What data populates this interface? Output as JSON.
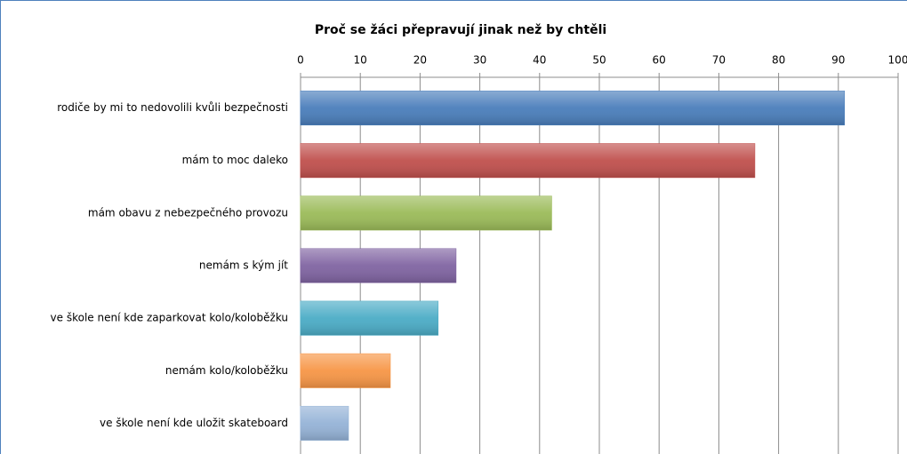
{
  "chart_data": {
    "type": "bar",
    "orientation": "horizontal",
    "title": "Proč se žáci přepravují jinak než by chtěli",
    "categories": [
      "rodiče by mi to nedovolili kvůli bezpečnosti",
      "mám to moc daleko",
      "mám obavu z nebezpečného provozu",
      "nemám s kým jít",
      "ve škole není kde zaparkovat kolo/koloběžku",
      "nemám kolo/koloběžku",
      "ve škole není kde uložit skateboard"
    ],
    "values": [
      91,
      76,
      42,
      26,
      23,
      15,
      8
    ],
    "colors": [
      "#4a7ebb",
      "#c0504d",
      "#9bbb59",
      "#8064a2",
      "#4bacc6",
      "#f79646",
      "#95b3d7"
    ],
    "xlim": [
      0,
      100
    ],
    "xticks": [
      0,
      10,
      20,
      30,
      40,
      50,
      60,
      70,
      80,
      90,
      100
    ],
    "grid": true
  }
}
